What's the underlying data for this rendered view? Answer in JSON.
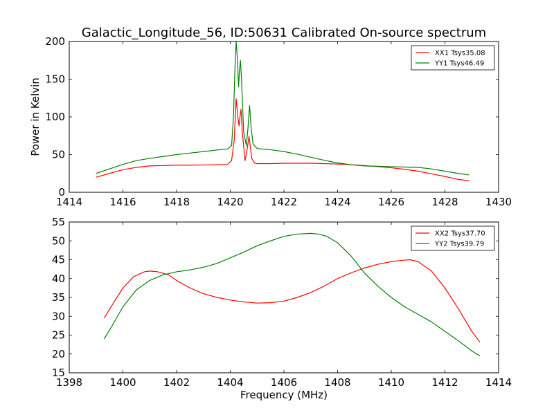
{
  "title": "Galactic_Longitude_56, ID:50631 Calibrated On-source spectrum",
  "chart_data": [
    {
      "type": "line",
      "xlabel": "",
      "ylabel": "Power in Kelvin",
      "xlim": [
        1414,
        1430
      ],
      "ylim": [
        0,
        200
      ],
      "xticks": [
        1414,
        1416,
        1418,
        1420,
        1422,
        1424,
        1426,
        1428,
        1430
      ],
      "yticks": [
        0,
        50,
        100,
        150,
        200
      ],
      "legend_position": "top-right",
      "series": [
        {
          "name": "XX1 Tsys35.08",
          "color": "#ff0000",
          "x": [
            1415.0,
            1415.5,
            1416.0,
            1416.5,
            1417.0,
            1417.5,
            1418.0,
            1418.5,
            1419.0,
            1419.5,
            1419.9,
            1420.05,
            1420.15,
            1420.22,
            1420.28,
            1420.33,
            1420.36,
            1420.4,
            1420.45,
            1420.55,
            1420.62,
            1420.7,
            1420.75,
            1420.8,
            1420.9,
            1421.0,
            1421.5,
            1422.0,
            1422.5,
            1423.0,
            1423.5,
            1424.0,
            1424.5,
            1425.0,
            1425.5,
            1426.0,
            1426.5,
            1427.0,
            1427.5,
            1428.0,
            1428.5,
            1428.9
          ],
          "y": [
            20,
            25,
            30,
            33,
            35,
            35.5,
            36,
            36,
            36.2,
            36.5,
            37,
            42,
            70,
            124,
            100,
            88,
            100,
            110,
            80,
            42,
            55,
            74,
            60,
            45,
            39,
            38,
            38,
            38.5,
            38.5,
            38.5,
            38,
            37.5,
            36.5,
            35.5,
            34,
            32.5,
            30.5,
            28,
            24.5,
            21,
            17,
            15.5
          ]
        },
        {
          "name": "YY1 Tsys46.49",
          "color": "#008000",
          "x": [
            1415.0,
            1415.5,
            1416.0,
            1416.5,
            1417.0,
            1417.5,
            1418.0,
            1418.5,
            1419.0,
            1419.5,
            1419.9,
            1420.05,
            1420.12,
            1420.18,
            1420.22,
            1420.27,
            1420.31,
            1420.34,
            1420.38,
            1420.42,
            1420.5,
            1420.6,
            1420.66,
            1420.72,
            1420.78,
            1420.85,
            1421.0,
            1421.5,
            1422.0,
            1422.5,
            1423.0,
            1423.5,
            1424.0,
            1424.5,
            1425.0,
            1425.5,
            1426.0,
            1426.5,
            1427.0,
            1427.5,
            1428.0,
            1428.5,
            1428.9
          ],
          "y": [
            25,
            31,
            37,
            42,
            45,
            47.5,
            50,
            52,
            54,
            56,
            57.5,
            62,
            100,
            170,
            200,
            175,
            140,
            160,
            175,
            150,
            80,
            62,
            85,
            115,
            85,
            64,
            58,
            56.5,
            54,
            50.5,
            46.5,
            42.5,
            39,
            36.5,
            35,
            34.5,
            34,
            33.5,
            33,
            31,
            28,
            25,
            23
          ]
        }
      ]
    },
    {
      "type": "line",
      "xlabel": "Frequency (MHz)",
      "ylabel": "",
      "xlim": [
        1398,
        1414
      ],
      "ylim": [
        15,
        55
      ],
      "xticks": [
        1398,
        1400,
        1402,
        1404,
        1406,
        1408,
        1410,
        1412,
        1414
      ],
      "yticks": [
        15,
        20,
        25,
        30,
        35,
        40,
        45,
        50,
        55
      ],
      "legend_position": "top-right",
      "series": [
        {
          "name": "XX2 Tsys37.70",
          "color": "#ff0000",
          "x": [
            1399.3,
            1399.6,
            1400.0,
            1400.4,
            1400.8,
            1401.0,
            1401.3,
            1401.7,
            1402.0,
            1402.5,
            1403.0,
            1403.5,
            1404.0,
            1404.5,
            1405.0,
            1405.5,
            1406.0,
            1406.5,
            1407.0,
            1407.5,
            1408.0,
            1408.5,
            1409.0,
            1409.5,
            1410.0,
            1410.5,
            1410.7,
            1411.0,
            1411.5,
            1412.0,
            1412.5,
            1413.0,
            1413.3
          ],
          "y": [
            29.5,
            33,
            37.5,
            40.5,
            41.8,
            42,
            41.8,
            41,
            39.5,
            37.5,
            36,
            35,
            34.3,
            33.8,
            33.5,
            33.6,
            34,
            35,
            36.3,
            38,
            40,
            41.5,
            42.8,
            43.8,
            44.5,
            44.9,
            45,
            44.5,
            42,
            37.5,
            32,
            26,
            23.2
          ]
        },
        {
          "name": "YY2 Tsys39.79",
          "color": "#008000",
          "x": [
            1399.3,
            1399.6,
            1400.0,
            1400.5,
            1401.0,
            1401.5,
            1402.0,
            1402.5,
            1403.0,
            1403.5,
            1404.0,
            1404.5,
            1405.0,
            1405.5,
            1406.0,
            1406.5,
            1407.0,
            1407.3,
            1407.6,
            1408.0,
            1408.5,
            1409.0,
            1409.5,
            1410.0,
            1410.5,
            1411.0,
            1411.5,
            1412.0,
            1412.5,
            1413.0,
            1413.3
          ],
          "y": [
            24,
            27.5,
            32.5,
            37,
            39.5,
            41,
            41.8,
            42.3,
            43,
            44,
            45.5,
            47,
            48.7,
            50,
            51.2,
            51.8,
            52,
            51.8,
            51.2,
            49.5,
            46,
            41.5,
            38,
            35,
            32.5,
            30.5,
            28.5,
            26,
            23.5,
            20.8,
            19.5
          ]
        }
      ]
    }
  ]
}
